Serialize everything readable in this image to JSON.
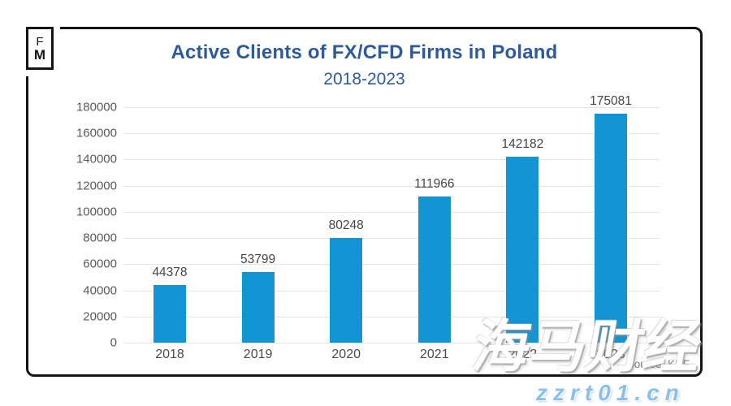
{
  "logo": {
    "line1": "F",
    "line2": "M"
  },
  "header": {
    "title": "Active Clients of FX/CFD Firms in Poland",
    "subtitle": "2018-2023"
  },
  "source_label": "Source: KNF",
  "watermark": {
    "brand": "海马财经",
    "url": "zzrt01.cn"
  },
  "colors": {
    "bar": "#1495d3",
    "title": "#2e5a9c",
    "grid": "#e4e4e4",
    "axis_text": "#595959",
    "axis_text2": "#4a4a4a",
    "value_text": "#454545",
    "watermark_url": "#8cc0ea"
  },
  "chart_data": {
    "type": "bar",
    "title": "Active Clients of FX/CFD Firms in Poland",
    "subtitle": "2018-2023",
    "categories": [
      "2018",
      "2019",
      "2020",
      "2021",
      "2022",
      "2023"
    ],
    "values": [
      44378,
      53799,
      80248,
      111966,
      142182,
      175081
    ],
    "xlabel": "",
    "ylabel": "",
    "ylim": [
      0,
      180000
    ],
    "ytick_step": 20000,
    "ytick_labels": [
      "180000",
      "160000",
      "140000",
      "120000",
      "100000",
      "80000",
      "60000",
      "40000",
      "20000",
      "0"
    ],
    "grid": true,
    "legend": false,
    "bar_color": "#1495d3",
    "value_labels_shown": true
  }
}
